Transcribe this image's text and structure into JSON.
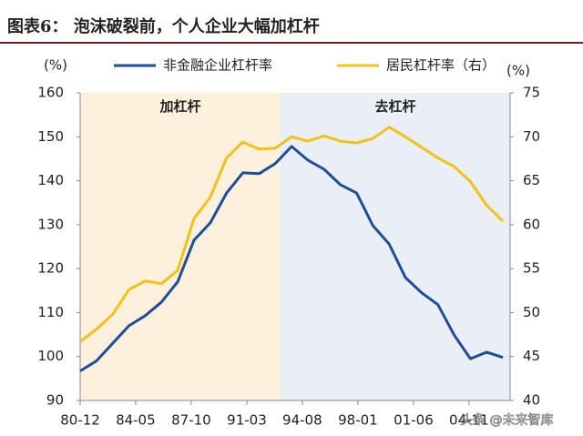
{
  "chart_data": {
    "type": "line",
    "title": "图表6：  泡沫破裂前，个人企业大幅加杠杆",
    "y_label": "(%)",
    "y2_label": "(%)",
    "x": [
      80.92,
      81.92,
      82.92,
      83.92,
      84.92,
      85.92,
      86.92,
      87.92,
      88.92,
      89.92,
      90.92,
      91.92,
      92.92,
      93.92,
      94.92,
      95.92,
      96.92,
      97.92,
      98.92,
      99.92,
      100.92,
      101.92,
      102.92,
      103.92,
      104.92,
      105.92,
      106.92
    ],
    "series": [
      {
        "name": "非金融企业杠杆率",
        "color": "#1f4e99",
        "axis": "y",
        "values": [
          96.7,
          99,
          103,
          107,
          109.3,
          112.4,
          117,
          126.5,
          130.4,
          137.2,
          141.8,
          141.6,
          143.9,
          147.8,
          144.7,
          142.6,
          139.1,
          137.2,
          129.8,
          125.6,
          118,
          114.5,
          111.8,
          104.9,
          99.5,
          101,
          99.8
        ]
      },
      {
        "name": "居民杠杆率（右）",
        "color": "#f2c21b",
        "axis": "y2",
        "values": [
          46.7,
          48.1,
          49.8,
          52.6,
          53.6,
          53.3,
          54.8,
          60.7,
          63.1,
          67.6,
          69.4,
          68.6,
          68.7,
          70,
          69.5,
          70.1,
          69.5,
          69.3,
          69.8,
          71.1,
          70,
          68.8,
          67.6,
          66.6,
          64.9,
          62.2,
          60.4
        ]
      }
    ],
    "regions": [
      {
        "label": "加杠杆",
        "start": 80.92,
        "end": 93.24,
        "color": "#fdf0dc",
        "label_color": "#c00000"
      },
      {
        "label": "去杠杆",
        "start": 93.24,
        "end": 107.36,
        "color": "#e9eef7",
        "label_color": "#1f4e99"
      }
    ],
    "xlim": [
      80.92,
      107.36
    ],
    "xticks": [
      {
        "value": 80.92,
        "label": "80-12"
      },
      {
        "value": 84.33,
        "label": "84-05"
      },
      {
        "value": 87.75,
        "label": "87-10"
      },
      {
        "value": 91.17,
        "label": "91-03"
      },
      {
        "value": 94.58,
        "label": "94-08"
      },
      {
        "value": 98,
        "label": "98-01"
      },
      {
        "value": 101.42,
        "label": "01-06"
      },
      {
        "value": 104.83,
        "label": "04-11"
      }
    ],
    "ylim": [
      90,
      160
    ],
    "yticks": [
      90,
      100,
      110,
      120,
      130,
      140,
      150,
      160
    ],
    "y2lim": [
      40,
      75
    ],
    "y2ticks": [
      40,
      45,
      50,
      55,
      60,
      65,
      70,
      75
    ],
    "legend": "top",
    "watermark": "头条 @未来智库"
  }
}
